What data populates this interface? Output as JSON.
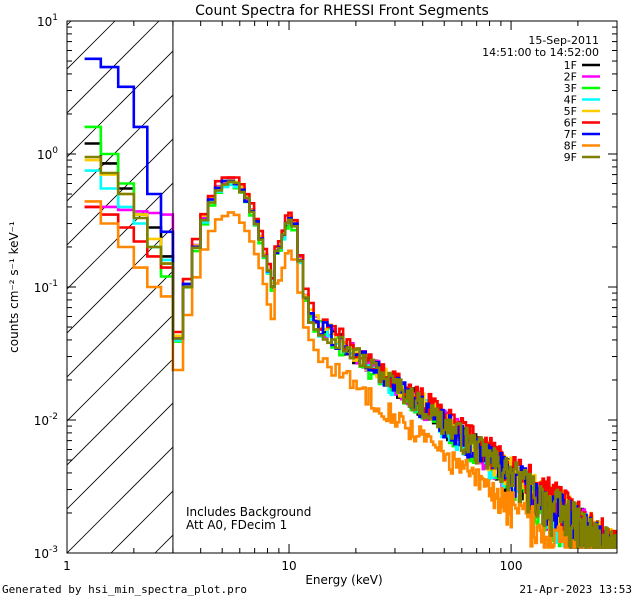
{
  "chart_data": {
    "type": "line",
    "title": "Count Spectra for RHESSI Front Segments",
    "xlabel": "Energy (keV)",
    "ylabel": "counts cm⁻² s⁻¹ keV⁻¹",
    "xscale": "log",
    "yscale": "log",
    "xlim": [
      1,
      300
    ],
    "ylim": [
      0.001,
      10
    ],
    "x_ticks": [
      {
        "value": 1,
        "label": "1"
      },
      {
        "value": 10,
        "label": "10"
      },
      {
        "value": 100,
        "label": "100"
      }
    ],
    "y_ticks": [
      {
        "value": 10,
        "base": "10",
        "exp": "1"
      },
      {
        "value": 1,
        "base": "10",
        "exp": "0"
      },
      {
        "value": 0.1,
        "base": "10",
        "exp": "-1"
      },
      {
        "value": 0.01,
        "base": "10",
        "exp": "-2"
      },
      {
        "value": 0.001,
        "base": "10",
        "exp": "-3"
      }
    ],
    "shaded_region": {
      "x_from": 1,
      "x_to": 3,
      "style": "hatched"
    },
    "date": "15-Sep-2011",
    "time_range": "14:51:00 to 14:52:00",
    "annotations": [
      "Includes Background",
      "Att A0, FDecim 1"
    ],
    "series": [
      {
        "name": "1F",
        "color": "#000000",
        "amp": 1.0,
        "seed": 11,
        "low": [
          1.2,
          0.85,
          0.55,
          0.35,
          0.28,
          0.17
        ]
      },
      {
        "name": "2F",
        "color": "#ff00ff",
        "amp": 1.02,
        "seed": 23,
        "low": [
          0.4,
          0.4,
          0.38,
          0.37,
          0.36,
          0.35
        ]
      },
      {
        "name": "3F",
        "color": "#00ff00",
        "amp": 0.95,
        "seed": 37,
        "low": [
          1.6,
          1.0,
          0.6,
          0.35,
          0.2,
          0.12
        ]
      },
      {
        "name": "4F",
        "color": "#00ffff",
        "amp": 0.97,
        "seed": 41,
        "low": [
          0.75,
          0.55,
          0.4,
          0.3,
          0.2,
          0.16
        ]
      },
      {
        "name": "5F",
        "color": "#ffcc00",
        "amp": 1.05,
        "seed": 53,
        "low": [
          0.9,
          0.7,
          0.5,
          0.35,
          0.23,
          0.15
        ]
      },
      {
        "name": "6F",
        "color": "#ff0000",
        "amp": 1.12,
        "seed": 67,
        "low": [
          0.4,
          0.35,
          0.28,
          0.22,
          0.17,
          0.14
        ]
      },
      {
        "name": "7F",
        "color": "#0000ff",
        "amp": 1.0,
        "seed": 71,
        "low": [
          5.2,
          4.5,
          3.2,
          1.6,
          0.5,
          0.26
        ]
      },
      {
        "name": "8F",
        "color": "#ff8800",
        "amp": 0.58,
        "seed": 83,
        "low": [
          0.44,
          0.3,
          0.2,
          0.14,
          0.1,
          0.085
        ]
      },
      {
        "name": "9F",
        "color": "#808000",
        "amp": 1.0,
        "seed": 97,
        "low": [
          0.95,
          0.72,
          0.5,
          0.33,
          0.2,
          0.15
        ]
      }
    ]
  },
  "footer": {
    "left": "Generated by hsi_min_spectra_plot.pro",
    "right": "21-Apr-2023 13:53"
  }
}
